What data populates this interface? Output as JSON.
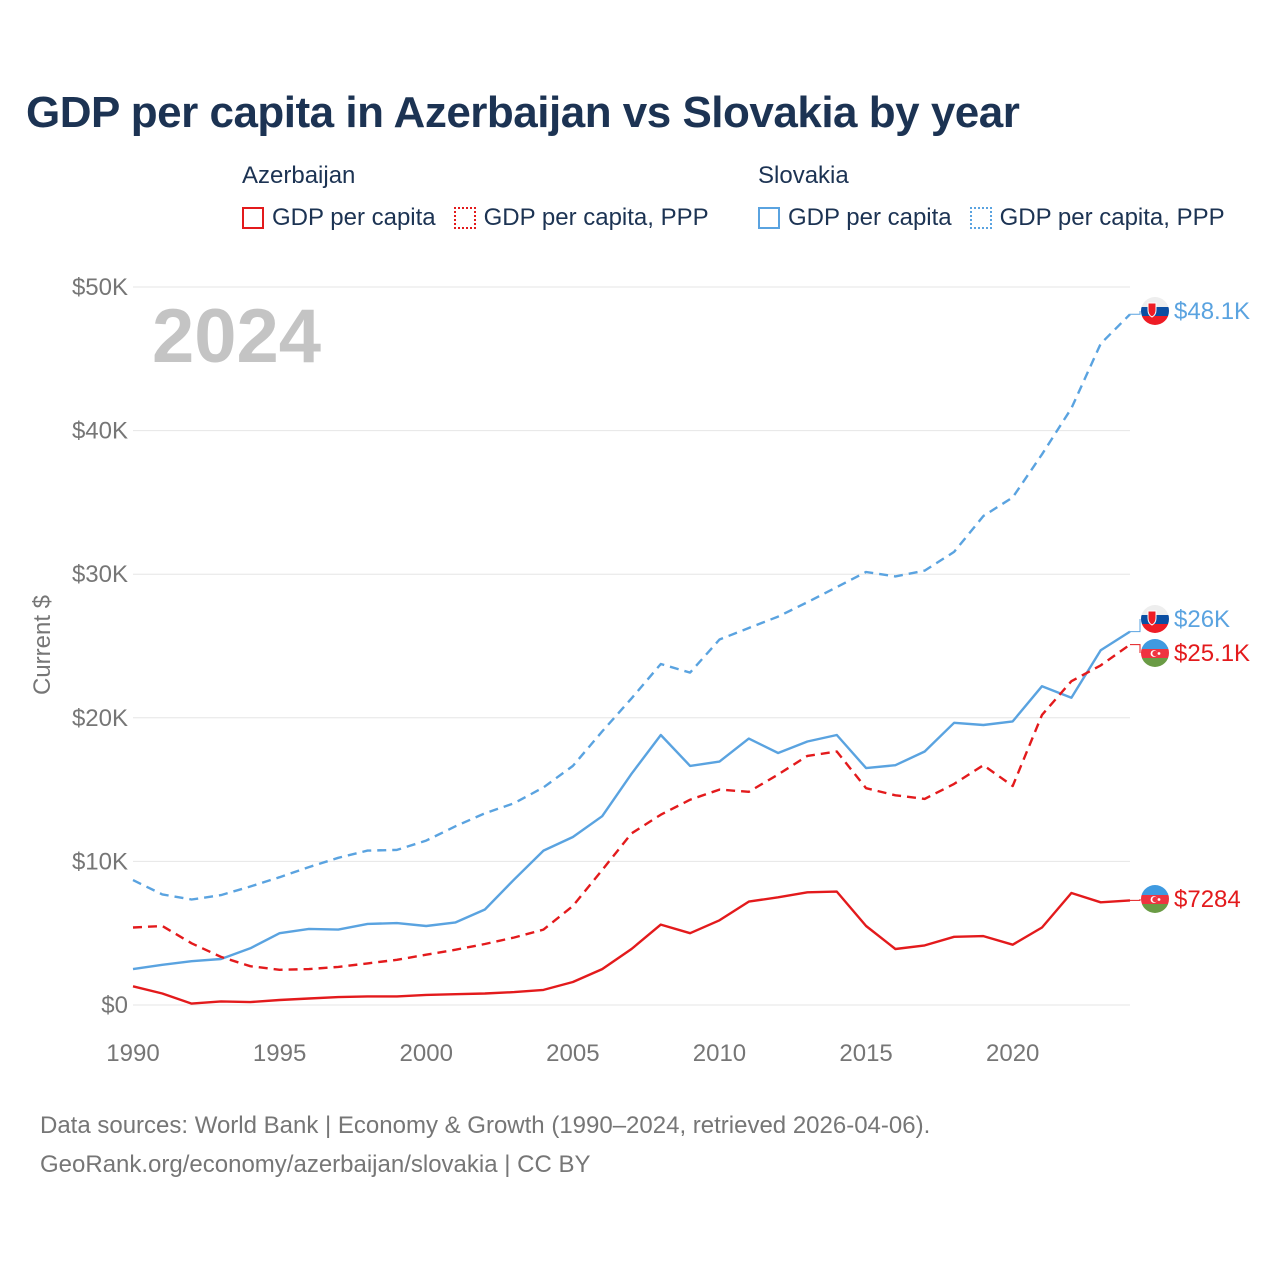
{
  "title": "GDP per capita in Azerbaijan vs Slovakia by year",
  "legend": [
    {
      "country": "Azerbaijan",
      "color": "#e31a1c",
      "items": [
        "GDP per capita",
        "GDP per capita, PPP"
      ]
    },
    {
      "country": "Slovakia",
      "color": "#5aa3e0",
      "items": [
        "GDP per capita",
        "GDP per capita, PPP"
      ]
    }
  ],
  "year_label": "2024",
  "footer": {
    "line1": "Data sources: World Bank | Economy & Growth (1990–2024, retrieved 2026-04-06).",
    "line2": "GeoRank.org/economy/azerbaijan/slovakia | CC BY"
  },
  "chart_data": {
    "type": "line",
    "ylabel": "Current $",
    "xlabel": "",
    "xlim": [
      1990,
      2024
    ],
    "ylim": [
      0,
      50000
    ],
    "x_ticks": [
      1990,
      1995,
      2000,
      2005,
      2010,
      2015,
      2020
    ],
    "y_ticks": [
      0,
      10000,
      20000,
      30000,
      40000,
      50000
    ],
    "y_tick_labels": [
      "$0",
      "$10K",
      "$20K",
      "$30K",
      "$40K",
      "$50K"
    ],
    "grid": true,
    "x": [
      1990,
      1991,
      1992,
      1993,
      1994,
      1995,
      1996,
      1997,
      1998,
      1999,
      2000,
      2001,
      2002,
      2003,
      2004,
      2005,
      2006,
      2007,
      2008,
      2009,
      2010,
      2011,
      2012,
      2013,
      2014,
      2015,
      2016,
      2017,
      2018,
      2019,
      2020,
      2021,
      2022,
      2023,
      2024
    ],
    "series": [
      {
        "name": "Slovakia GDP per capita, PPP",
        "country": "Slovakia",
        "style": "dashed",
        "color": "#5aa3e0",
        "end_label": "$48.1K",
        "values": [
          8700,
          7700,
          7350,
          7650,
          8250,
          8900,
          9600,
          10250,
          10750,
          10800,
          11450,
          12450,
          13350,
          14050,
          15150,
          16650,
          19050,
          21350,
          23750,
          23150,
          25450,
          26250,
          27050,
          28050,
          29100,
          30150,
          29850,
          30250,
          31550,
          34050,
          35350,
          38350,
          41550,
          46050,
          48100
        ]
      },
      {
        "name": "Slovakia GDP per capita",
        "country": "Slovakia",
        "style": "solid",
        "color": "#5aa3e0",
        "end_label": "$26K",
        "values": [
          2500,
          2800,
          3050,
          3200,
          3950,
          5000,
          5300,
          5250,
          5650,
          5700,
          5500,
          5750,
          6650,
          8750,
          10750,
          11700,
          13150,
          16100,
          18800,
          16650,
          16950,
          18550,
          17550,
          18350,
          18800,
          16500,
          16700,
          17650,
          19650,
          19500,
          19750,
          22200,
          21400,
          24700,
          26000
        ]
      },
      {
        "name": "Azerbaijan GDP per capita, PPP",
        "country": "Azerbaijan",
        "style": "dashed",
        "color": "#e31a1c",
        "end_label": "$25.1K",
        "values": [
          5400,
          5500,
          4300,
          3350,
          2700,
          2450,
          2500,
          2650,
          2900,
          3150,
          3500,
          3850,
          4250,
          4700,
          5250,
          6900,
          9400,
          11950,
          13250,
          14300,
          15000,
          14850,
          16050,
          17350,
          17650,
          15100,
          14600,
          14350,
          15400,
          16700,
          15250,
          20200,
          22550,
          23650,
          25100
        ]
      },
      {
        "name": "Azerbaijan GDP per capita",
        "country": "Azerbaijan",
        "style": "solid",
        "color": "#e31a1c",
        "end_label": "$7284",
        "values": [
          1300,
          800,
          100,
          250,
          200,
          350,
          450,
          550,
          600,
          600,
          700,
          750,
          800,
          900,
          1050,
          1600,
          2500,
          3900,
          5600,
          5000,
          5900,
          7200,
          7500,
          7850,
          7900,
          5500,
          3900,
          4150,
          4750,
          4800,
          4200,
          5400,
          7800,
          7150,
          7284
        ]
      }
    ]
  }
}
